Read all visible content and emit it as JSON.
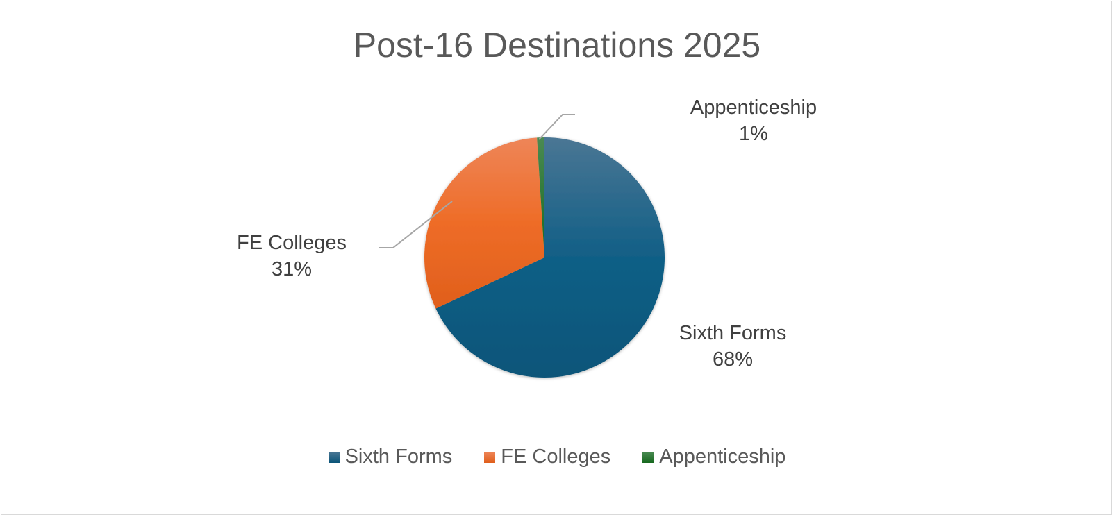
{
  "chart_data": {
    "type": "pie",
    "title": "Post-16 Destinations 2025",
    "categories": [
      "Sixth Forms",
      "FE Colleges",
      "Appenticeship"
    ],
    "values": [
      68,
      31,
      1
    ],
    "data_labels": [
      {
        "name": "Sixth Forms",
        "pct": "68%"
      },
      {
        "name": "FE Colleges",
        "pct": "31%"
      },
      {
        "name": "Appenticeship",
        "pct": "1%"
      }
    ],
    "colors": [
      "#0f5c82",
      "#ec6a26",
      "#1a6e2a"
    ],
    "start_angle": "top, clockwise",
    "legend_position": "bottom"
  }
}
